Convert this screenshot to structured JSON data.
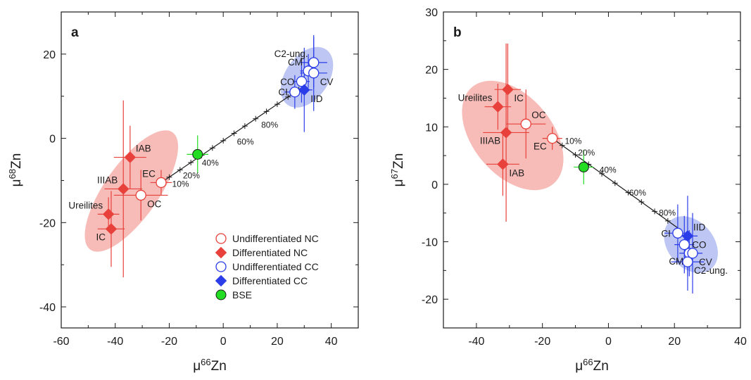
{
  "chart_data": [
    {
      "type": "scatter",
      "panel_label": "a",
      "xlabel": {
        "base": "μ",
        "sup": "66",
        "rest": "Zn"
      },
      "ylabel": {
        "base": "μ",
        "sup": "68",
        "rest": "Zn"
      },
      "xlim": [
        -60,
        50
      ],
      "ylim": [
        -45,
        30
      ],
      "xticks": [
        -60,
        -40,
        -20,
        0,
        20,
        40
      ],
      "yticks": [
        -40,
        -20,
        0,
        20
      ],
      "grid": false,
      "regions": [
        {
          "group": "NC",
          "color": "#f4a5a0",
          "center": [
            -34,
            -12.5
          ],
          "semi_axes_data": [
            10,
            17
          ],
          "rotation_deg": 35
        },
        {
          "group": "CC",
          "color": "#a8b4f0",
          "center": [
            31,
            14.5
          ],
          "semi_axes_data": [
            8,
            8
          ],
          "rotation_deg": 35
        }
      ],
      "mixing_line": {
        "from": [
          -23,
          -10.5
        ],
        "to": [
          29,
          12
        ],
        "ticks_x": [
          -20,
          -16,
          -12,
          -8,
          -4,
          0,
          4,
          8,
          12,
          16,
          20,
          24,
          28
        ],
        "labels": [
          {
            "x": -20.5,
            "y": -9.5,
            "text": "10%"
          },
          {
            "x": -16.5,
            "y": -7.5,
            "text": "20%"
          },
          {
            "x": -9.5,
            "y": -4.5,
            "text": "40%"
          },
          {
            "x": 3.5,
            "y": 0.5,
            "text": "60%"
          },
          {
            "x": 12.5,
            "y": 4.5,
            "text": "80%"
          }
        ]
      },
      "points": [
        {
          "label": "IAB",
          "group": "Differentiated NC",
          "marker": "diamond",
          "color": "#e8413b",
          "x": -34.5,
          "y": -4.5,
          "xerr": 6,
          "yerr": 7.5,
          "label_pos": "right-up"
        },
        {
          "label": "IIIAB",
          "group": "Differentiated NC",
          "marker": "diamond",
          "color": "#e8413b",
          "x": -37,
          "y": -12,
          "xerr": 7,
          "yerr": 21,
          "label_pos": "left-up"
        },
        {
          "label": "Ureilites",
          "group": "Differentiated NC",
          "marker": "diamond",
          "color": "#e8413b",
          "x": -42.5,
          "y": -18,
          "xerr": 4,
          "yerr": 4,
          "label_pos": "left-up"
        },
        {
          "label": "IC",
          "group": "Differentiated NC",
          "marker": "diamond",
          "color": "#e8413b",
          "x": -41.5,
          "y": -21.5,
          "xerr": 5,
          "yerr": 9,
          "label_pos": "left-down"
        },
        {
          "label": "OC",
          "group": "Undifferentiated NC",
          "marker": "circle",
          "color": "#e8413b",
          "x": -30.5,
          "y": -13.5,
          "xerr": 10,
          "yerr": 6,
          "label_pos": "right-down"
        },
        {
          "label": "EC",
          "group": "Undifferentiated NC",
          "marker": "circle",
          "color": "#e8413b",
          "x": -23,
          "y": -10.5,
          "xerr": 4,
          "yerr": 3,
          "label_pos": "left-up"
        },
        {
          "label": "",
          "group": "BSE",
          "marker": "circle-filled",
          "color": "#22dd22",
          "x": -9.5,
          "y": -3.8,
          "xerr": 4,
          "yerr": 4.5,
          "label_pos": ""
        },
        {
          "label": "C2-ung.",
          "group": "Undifferentiated CC",
          "marker": "circle",
          "color": "#2b3de8",
          "x": 33.5,
          "y": 18,
          "xerr": 5,
          "yerr": 6,
          "label_pos": "left-up"
        },
        {
          "label": "CM",
          "group": "Undifferentiated CC",
          "marker": "circle",
          "color": "#2b3de8",
          "x": 31.5,
          "y": 16,
          "xerr": 3,
          "yerr": 4,
          "label_pos": "left-up"
        },
        {
          "label": "CV",
          "group": "Undifferentiated CC",
          "marker": "circle",
          "color": "#2b3de8",
          "x": 33.5,
          "y": 15.5,
          "xerr": 5,
          "yerr": 9,
          "label_pos": "right-down"
        },
        {
          "label": "CO",
          "group": "Undifferentiated CC",
          "marker": "circle",
          "color": "#2b3de8",
          "x": 29,
          "y": 13.5,
          "xerr": 3,
          "yerr": 5,
          "label_pos": "left"
        },
        {
          "label": "CI",
          "group": "Undifferentiated CC",
          "marker": "circle",
          "color": "#2b3de8",
          "x": 26.5,
          "y": 11,
          "xerr": 4,
          "yerr": 4,
          "label_pos": "left"
        },
        {
          "label": "IID",
          "group": "Differentiated CC",
          "marker": "diamond",
          "color": "#2b3de8",
          "x": 30,
          "y": 11.5,
          "xerr": 3,
          "yerr": 10,
          "label_pos": "right-down"
        }
      ],
      "legend": {
        "position": "bottom-right",
        "entries": [
          {
            "label": "Undifferentiated NC",
            "marker": "circle",
            "color": "#e8413b"
          },
          {
            "label": "Differentiated NC",
            "marker": "diamond",
            "color": "#e8413b"
          },
          {
            "label": "Undifferentiated CC",
            "marker": "circle",
            "color": "#2b3de8"
          },
          {
            "label": "Differentiated CC",
            "marker": "diamond",
            "color": "#2b3de8"
          },
          {
            "label": "BSE",
            "marker": "circle-filled",
            "color": "#22dd22"
          }
        ]
      }
    },
    {
      "type": "scatter",
      "panel_label": "b",
      "xlabel": {
        "base": "μ",
        "sup": "66",
        "rest": "Zn"
      },
      "ylabel": {
        "base": "μ",
        "sup": "67",
        "rest": "Zn"
      },
      "xlim": [
        -50,
        40
      ],
      "ylim": [
        -25,
        30
      ],
      "xticks": [
        -40,
        -20,
        0,
        20,
        40
      ],
      "yticks": [
        -20,
        -10,
        0,
        10,
        20,
        30
      ],
      "grid": false,
      "regions": [
        {
          "group": "NC",
          "color": "#f4a5a0",
          "center": [
            -29,
            8.5
          ],
          "semi_axes_data": [
            12,
            11
          ],
          "rotation_deg": -40
        },
        {
          "group": "CC",
          "color": "#a8b4f0",
          "center": [
            25,
            -10.5
          ],
          "semi_axes_data": [
            7,
            5.5
          ],
          "rotation_deg": -40
        }
      ],
      "mixing_line": {
        "from": [
          -17,
          8
        ],
        "to": [
          22,
          -8
        ],
        "ticks_x": [
          -14,
          -10,
          -6,
          -2,
          2,
          6,
          10,
          14,
          18
        ],
        "labels": [
          {
            "x": -14.5,
            "y": 8.5,
            "text": "10%"
          },
          {
            "x": -10.5,
            "y": 6.5,
            "text": "20%"
          },
          {
            "x": -4,
            "y": 3.5,
            "text": "40%"
          },
          {
            "x": 5,
            "y": -0.5,
            "text": "60%"
          },
          {
            "x": 14,
            "y": -4,
            "text": "80%"
          }
        ]
      },
      "points": [
        {
          "label": "IC",
          "group": "Differentiated NC",
          "marker": "diamond",
          "color": "#e8413b",
          "x": -30.5,
          "y": 16.5,
          "xerr": 4,
          "yerr": 8,
          "label_pos": "right-down"
        },
        {
          "label": "Ureilites",
          "group": "Differentiated NC",
          "marker": "diamond",
          "color": "#e8413b",
          "x": -33.5,
          "y": 13.5,
          "xerr": 4,
          "yerr": 4,
          "label_pos": "left-up"
        },
        {
          "label": "OC",
          "group": "Undifferentiated NC",
          "marker": "circle",
          "color": "#e8413b",
          "x": -25,
          "y": 10.5,
          "xerr": 6,
          "yerr": 6,
          "label_pos": "right-up"
        },
        {
          "label": "IIIAB",
          "group": "Differentiated NC",
          "marker": "diamond",
          "color": "#e8413b",
          "x": -31,
          "y": 9,
          "xerr": 7,
          "yerr": 15.5,
          "label_pos": "left-down"
        },
        {
          "label": "EC",
          "group": "Undifferentiated NC",
          "marker": "circle",
          "color": "#e8413b",
          "x": -17,
          "y": 8,
          "xerr": 3,
          "yerr": 2,
          "label_pos": "left-down"
        },
        {
          "label": "IAB",
          "group": "Differentiated NC",
          "marker": "diamond",
          "color": "#e8413b",
          "x": -32,
          "y": 3.5,
          "xerr": 5,
          "yerr": 5.5,
          "label_pos": "right-down"
        },
        {
          "label": "",
          "group": "BSE",
          "marker": "circle-filled",
          "color": "#22dd22",
          "x": -7.5,
          "y": 3,
          "xerr": 3,
          "yerr": 3,
          "label_pos": ""
        },
        {
          "label": "CI",
          "group": "Undifferentiated CC",
          "marker": "circle",
          "color": "#2b3de8",
          "x": 21,
          "y": -8.5,
          "xerr": 4,
          "yerr": 5,
          "label_pos": "left"
        },
        {
          "label": "IID",
          "group": "Differentiated CC",
          "marker": "diamond",
          "color": "#2b3de8",
          "x": 24,
          "y": -9,
          "xerr": 3,
          "yerr": 7,
          "label_pos": "right-up"
        },
        {
          "label": "CO",
          "group": "Undifferentiated CC",
          "marker": "circle",
          "color": "#2b3de8",
          "x": 23,
          "y": -10.5,
          "xerr": 3,
          "yerr": 5,
          "label_pos": "right"
        },
        {
          "label": "CM",
          "group": "Undifferentiated CC",
          "marker": "circle",
          "color": "#2b3de8",
          "x": 24.5,
          "y": -12,
          "xerr": 3,
          "yerr": 4,
          "label_pos": "left-down"
        },
        {
          "label": "CV",
          "group": "Undifferentiated CC",
          "marker": "circle",
          "color": "#2b3de8",
          "x": 25.5,
          "y": -12,
          "xerr": 3,
          "yerr": 7,
          "label_pos": "right-down"
        },
        {
          "label": "C2-ung.",
          "group": "Undifferentiated CC",
          "marker": "circle",
          "color": "#2b3de8",
          "x": 24,
          "y": -13.5,
          "xerr": 5,
          "yerr": 5,
          "label_pos": "right-down"
        }
      ]
    }
  ]
}
